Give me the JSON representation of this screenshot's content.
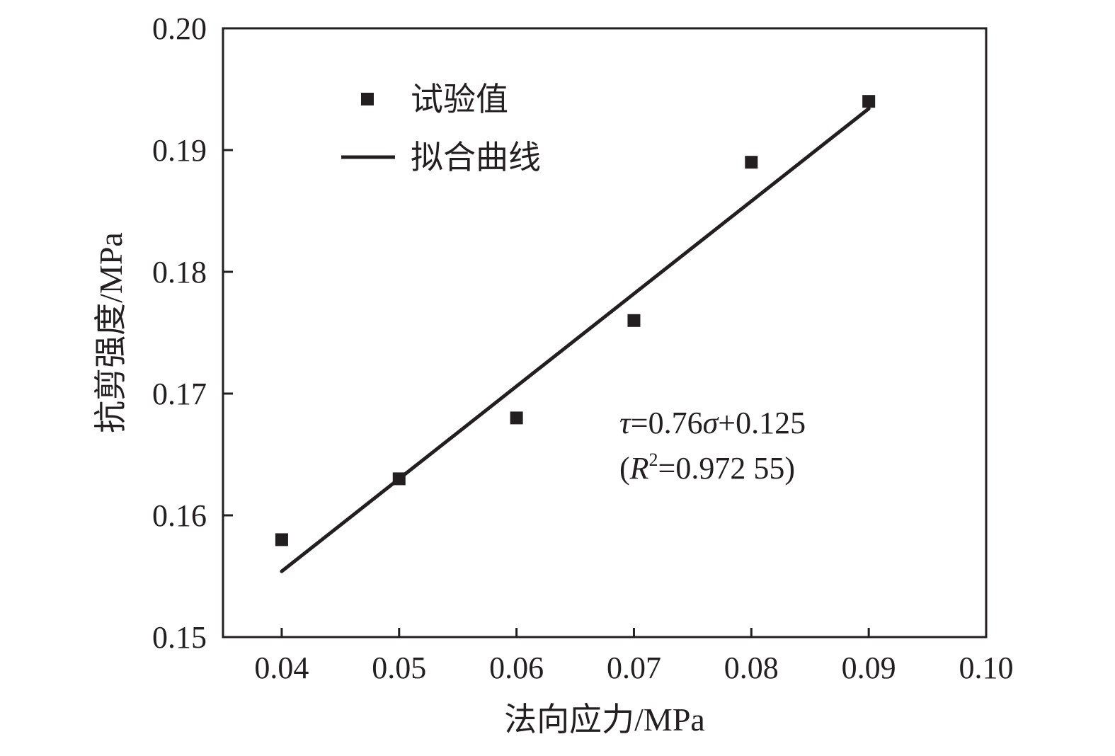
{
  "chart_data": {
    "type": "scatter",
    "xlabel": "法向应力/MPa",
    "ylabel": "抗剪强度/MPa",
    "xlim": [
      0.035,
      0.1
    ],
    "ylim": [
      0.15,
      0.2
    ],
    "xticks": [
      "0.04",
      "0.05",
      "0.06",
      "0.07",
      "0.08",
      "0.09",
      "0.10"
    ],
    "yticks": [
      "0.15",
      "0.16",
      "0.17",
      "0.18",
      "0.19",
      "0.20"
    ],
    "grid": false,
    "legend_placement": "top-left",
    "series": [
      {
        "name": "试验值",
        "kind": "scatter",
        "marker": "square",
        "x": [
          0.04,
          0.05,
          0.06,
          0.07,
          0.08,
          0.09
        ],
        "y": [
          0.158,
          0.163,
          0.168,
          0.176,
          0.189,
          0.194
        ]
      },
      {
        "name": "拟合曲线",
        "kind": "line",
        "slope": 0.76,
        "intercept": 0.125,
        "x_range": [
          0.04,
          0.09
        ]
      }
    ],
    "annotation": {
      "equation_tau": "τ",
      "equation_rest": "=0.76",
      "equation_sigma": "σ",
      "equation_tail": "+0.125",
      "r2_open": "(",
      "r2_R": "R",
      "r2_sup": "2",
      "r2_rest": "=0.972 55)"
    },
    "colors": {
      "ink": "#231f20"
    }
  }
}
